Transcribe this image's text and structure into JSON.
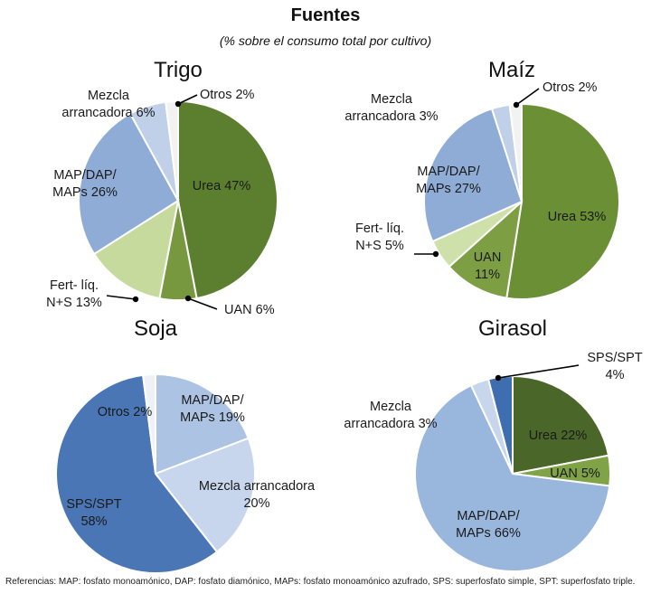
{
  "header": {
    "title": "Fuentes",
    "subtitle": "(% sobre el consumo total por cultivo)"
  },
  "footnote": "Referencias: MAP: fosfato monoamónico, DAP: fosfato diamónico, MAPs: fosfato monoamónico azufrado, SPS: superfosfato simple, SPT: superfosfato triple.",
  "chart_data": [
    {
      "type": "pie",
      "title": "Trigo",
      "slices": [
        {
          "label": "Urea 47%",
          "value": 47,
          "color": "#5b7f2f",
          "text_color": "#1a1a1a"
        },
        {
          "label": "UAN 6%",
          "value": 6,
          "color": "#77983f",
          "text_color": "#1a1a1a"
        },
        {
          "label": "Fert- líq. N+S 13%",
          "value": 13,
          "color": "#c6da9e",
          "text_color": "#1a1a1a"
        },
        {
          "label": "MAP/DAP/ MAPs 26%",
          "value": 26,
          "color": "#8eacd6",
          "text_color": "#1a1a1a"
        },
        {
          "label": "Mezcla arrancadora 6%",
          "value": 6,
          "color": "#bfd0e8",
          "text_color": "#1a1a1a"
        },
        {
          "label": "Otros 2%",
          "value": 2,
          "color": "#f2f2f2",
          "text_color": "#1a1a1a"
        }
      ]
    },
    {
      "type": "pie",
      "title": "Maíz",
      "slices": [
        {
          "label": "Urea 53%",
          "value": 53,
          "color": "#6a8f35",
          "text_color": "#1a1a1a"
        },
        {
          "label": "UAN 11%",
          "value": 11,
          "color": "#7e9e44",
          "text_color": "#1a1a1a"
        },
        {
          "label": "Fert- líq. N+S 5%",
          "value": 5,
          "color": "#cfe1aa",
          "text_color": "#1a1a1a"
        },
        {
          "label": "MAP/DAP/ MAPs 27%",
          "value": 27,
          "color": "#8eacd6",
          "text_color": "#1a1a1a"
        },
        {
          "label": "Mezcla arrancadora 3%",
          "value": 3,
          "color": "#bfd0e8",
          "text_color": "#1a1a1a"
        },
        {
          "label": "Otros 2%",
          "value": 2,
          "color": "#f2f2f2",
          "text_color": "#1a1a1a"
        }
      ]
    },
    {
      "type": "pie",
      "title": "Soja",
      "slices": [
        {
          "label": "MAP/DAP/ MAPs 19%",
          "value": 19,
          "color": "#adc3e3",
          "text_color": "#1a1a1a"
        },
        {
          "label": "Mezcla arrancadora 20%",
          "value": 20,
          "color": "#c7d6ec",
          "text_color": "#1a1a1a"
        },
        {
          "label": "SPS/SPT 58%",
          "value": 58,
          "color": "#4a76b5",
          "text_color": "#1a1a1a"
        },
        {
          "label": "Otros 2%",
          "value": 2,
          "color": "#eef2f8",
          "text_color": "#1a1a1a"
        }
      ]
    },
    {
      "type": "pie",
      "title": "Girasol",
      "slices": [
        {
          "label": "Urea 22%",
          "value": 22,
          "color": "#4a6628",
          "text_color": "#1a1a1a"
        },
        {
          "label": "UAN 5%",
          "value": 5,
          "color": "#7fa346",
          "text_color": "#1a1a1a"
        },
        {
          "label": "MAP/DAP/ MAPs 66%",
          "value": 66,
          "color": "#99b6dd",
          "text_color": "#1a1a1a"
        },
        {
          "label": "Mezcla arrancadora 3%",
          "value": 3,
          "color": "#c7d6ec",
          "text_color": "#1a1a1a"
        },
        {
          "label": "SPS/SPT 4%",
          "value": 4,
          "color": "#3f6eb0",
          "text_color": "#1a1a1a"
        }
      ]
    }
  ]
}
